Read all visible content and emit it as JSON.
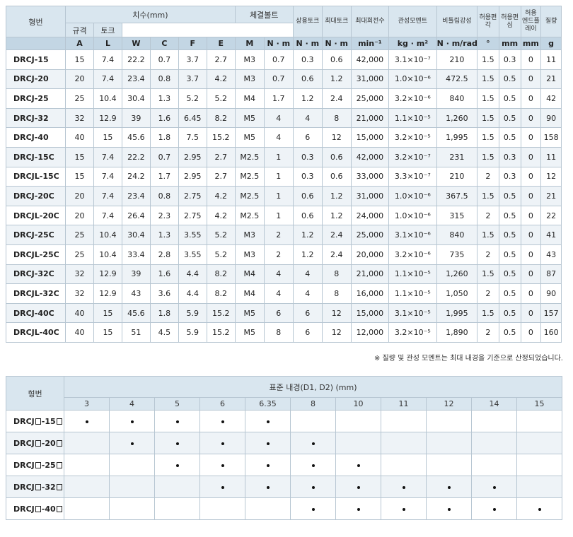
{
  "spec_table": {
    "col_model": "형번",
    "group_dimensions": "치수(mm)",
    "group_bolt": "체결볼트",
    "bolt_size": "규격",
    "bolt_torque": "토크",
    "col_rated_torque": "상용토크",
    "col_max_torque": "최대토크",
    "col_max_speed": "최대회전수",
    "col_inertia": "관성모멘트",
    "col_torsion": "비틀림강성",
    "col_angular": "허용편각",
    "col_offset": "허용편심",
    "col_endplay_l1": "허용",
    "col_endplay_l2": "엔드플레이",
    "col_mass": "질량",
    "units": [
      "A",
      "L",
      "W",
      "C",
      "F",
      "E",
      "M",
      "N · m",
      "N · m",
      "N · m",
      "min⁻¹",
      "kg · m²",
      "N · m/rad",
      "°",
      "mm",
      "mm",
      "g"
    ],
    "rows": [
      [
        "DRCJ-15",
        "15",
        "7.4",
        "22.2",
        "0.7",
        "3.7",
        "2.7",
        "M3",
        "0.7",
        "0.3",
        "0.6",
        "42,000",
        "3.1×10⁻⁷",
        "210",
        "1.5",
        "0.3",
        "0",
        "11"
      ],
      [
        "DRCJ-20",
        "20",
        "7.4",
        "23.4",
        "0.8",
        "3.7",
        "4.2",
        "M3",
        "0.7",
        "0.6",
        "1.2",
        "31,000",
        "1.0×10⁻⁶",
        "472.5",
        "1.5",
        "0.5",
        "0",
        "21"
      ],
      [
        "DRCJ-25",
        "25",
        "10.4",
        "30.4",
        "1.3",
        "5.2",
        "5.2",
        "M4",
        "1.7",
        "1.2",
        "2.4",
        "25,000",
        "3.2×10⁻⁶",
        "840",
        "1.5",
        "0.5",
        "0",
        "42"
      ],
      [
        "DRCJ-32",
        "32",
        "12.9",
        "39",
        "1.6",
        "6.45",
        "8.2",
        "M5",
        "4",
        "4",
        "8",
        "21,000",
        "1.1×10⁻⁵",
        "1,260",
        "1.5",
        "0.5",
        "0",
        "90"
      ],
      [
        "DRCJ-40",
        "40",
        "15",
        "45.6",
        "1.8",
        "7.5",
        "15.2",
        "M5",
        "4",
        "6",
        "12",
        "15,000",
        "3.2×10⁻⁵",
        "1,995",
        "1.5",
        "0.5",
        "0",
        "158"
      ],
      [
        "DRCJ-15C",
        "15",
        "7.4",
        "22.2",
        "0.7",
        "2.95",
        "2.7",
        "M2.5",
        "1",
        "0.3",
        "0.6",
        "42,000",
        "3.2×10⁻⁷",
        "231",
        "1.5",
        "0.3",
        "0",
        "11"
      ],
      [
        "DRCJL-15C",
        "15",
        "7.4",
        "24.2",
        "1.7",
        "2.95",
        "2.7",
        "M2.5",
        "1",
        "0.3",
        "0.6",
        "33,000",
        "3.3×10⁻⁷",
        "210",
        "2",
        "0.3",
        "0",
        "12"
      ],
      [
        "DRCJ-20C",
        "20",
        "7.4",
        "23.4",
        "0.8",
        "2.75",
        "4.2",
        "M2.5",
        "1",
        "0.6",
        "1.2",
        "31,000",
        "1.0×10⁻⁶",
        "367.5",
        "1.5",
        "0.5",
        "0",
        "21"
      ],
      [
        "DRCJL-20C",
        "20",
        "7.4",
        "26.4",
        "2.3",
        "2.75",
        "4.2",
        "M2.5",
        "1",
        "0.6",
        "1.2",
        "24,000",
        "1.0×10⁻⁶",
        "315",
        "2",
        "0.5",
        "0",
        "22"
      ],
      [
        "DRCJ-25C",
        "25",
        "10.4",
        "30.4",
        "1.3",
        "3.55",
        "5.2",
        "M3",
        "2",
        "1.2",
        "2.4",
        "25,000",
        "3.1×10⁻⁶",
        "840",
        "1.5",
        "0.5",
        "0",
        "41"
      ],
      [
        "DRCJL-25C",
        "25",
        "10.4",
        "33.4",
        "2.8",
        "3.55",
        "5.2",
        "M3",
        "2",
        "1.2",
        "2.4",
        "20,000",
        "3.2×10⁻⁶",
        "735",
        "2",
        "0.5",
        "0",
        "43"
      ],
      [
        "DRCJ-32C",
        "32",
        "12.9",
        "39",
        "1.6",
        "4.4",
        "8.2",
        "M4",
        "4",
        "4",
        "8",
        "21,000",
        "1.1×10⁻⁵",
        "1,260",
        "1.5",
        "0.5",
        "0",
        "87"
      ],
      [
        "DRCJL-32C",
        "32",
        "12.9",
        "43",
        "3.6",
        "4.4",
        "8.2",
        "M4",
        "4",
        "4",
        "8",
        "16,000",
        "1.1×10⁻⁵",
        "1,050",
        "2",
        "0.5",
        "0",
        "90"
      ],
      [
        "DRCJ-40C",
        "40",
        "15",
        "45.6",
        "1.8",
        "5.9",
        "15.2",
        "M5",
        "6",
        "6",
        "12",
        "15,000",
        "3.1×10⁻⁵",
        "1,995",
        "1.5",
        "0.5",
        "0",
        "157"
      ],
      [
        "DRCJL-40C",
        "40",
        "15",
        "51",
        "4.5",
        "5.9",
        "15.2",
        "M5",
        "8",
        "6",
        "12",
        "12,000",
        "3.2×10⁻⁵",
        "1,890",
        "2",
        "0.5",
        "0",
        "160"
      ]
    ]
  },
  "note": "※ 질량 및 관성 모멘트는 최대 내경을 기준으로 산정되었습니다.",
  "bore_table": {
    "col_model": "형번",
    "title": "표준 내경(D1, D2) (mm)",
    "bores": [
      "3",
      "4",
      "5",
      "6",
      "6.35",
      "8",
      "10",
      "11",
      "12",
      "14",
      "15"
    ],
    "rows": [
      {
        "prefix": "DRCJ",
        "suffix": "-15",
        "marks": [
          1,
          1,
          1,
          1,
          1,
          0,
          0,
          0,
          0,
          0,
          0
        ]
      },
      {
        "prefix": "DRCJ",
        "suffix": "-20",
        "marks": [
          0,
          1,
          1,
          1,
          1,
          1,
          0,
          0,
          0,
          0,
          0
        ]
      },
      {
        "prefix": "DRCJ",
        "suffix": "-25",
        "marks": [
          0,
          0,
          1,
          1,
          1,
          1,
          1,
          0,
          0,
          0,
          0
        ]
      },
      {
        "prefix": "DRCJ",
        "suffix": "-32",
        "marks": [
          0,
          0,
          0,
          1,
          1,
          1,
          1,
          1,
          1,
          1,
          0
        ]
      },
      {
        "prefix": "DRCJ",
        "suffix": "-40",
        "marks": [
          0,
          0,
          0,
          0,
          0,
          1,
          1,
          1,
          1,
          1,
          1
        ]
      }
    ]
  }
}
